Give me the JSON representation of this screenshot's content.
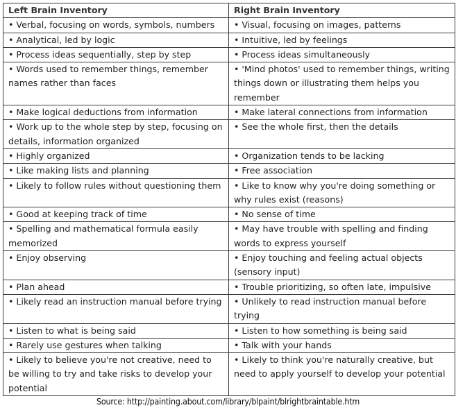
{
  "headers": {
    "left": "Left Brain Inventory",
    "right": "Right Brain Inventory"
  },
  "rows": [
    {
      "left": "• Verbal, focusing on words, symbols, numbers",
      "right": "• Visual, focusing on images, patterns"
    },
    {
      "left": "• Analytical, led by logic",
      "right": "• Intuitive, led by feelings"
    },
    {
      "left": "• Process ideas sequentially, step by step",
      "right": "• Process ideas simultaneously"
    },
    {
      "left": "• Words used to remember things, remember names rather than faces",
      "right": "• 'Mind photos' used to remember things, writing things down or illustrating them helps you remember"
    },
    {
      "left": "• Make logical deductions from information",
      "right": "• Make lateral connections from information"
    },
    {
      "left": "• Work up to the whole step by step, focusing on details, information organized",
      "right": "• See the whole first, then the details"
    },
    {
      "left": "• Highly organized",
      "right": "• Organization tends to be lacking"
    },
    {
      "left": "• Like making lists and planning",
      "right": "• Free association"
    },
    {
      "left": "• Likely to follow rules without questioning them",
      "right": "• Like to know why you're doing something or why rules exist (reasons)"
    },
    {
      "left": "• Good at keeping track of time",
      "right": "• No sense of time"
    },
    {
      "left": "• Spelling and mathematical formula easily memorized",
      "right": "• May have trouble with spelling and finding words to express yourself"
    },
    {
      "left": "• Enjoy observing",
      "right": "• Enjoy touching and feeling actual objects (sensory input)"
    },
    {
      "left": "• Plan ahead",
      "right": "• Trouble prioritizing, so often late, impulsive"
    },
    {
      "left": "• Likely read an instruction manual before trying",
      "right": "• Unlikely to read instruction manual before trying"
    },
    {
      "left": "• Listen to what is being said",
      "right": "• Listen to how something is being said"
    },
    {
      "left": "• Rarely use gestures when talking",
      "right": "• Talk with your hands"
    },
    {
      "left": "• Likely to believe you're not creative, need to be willing to try and take risks to develop your potential",
      "right": "• Likely to think you're naturally creative, but need to apply yourself to develop your potential"
    }
  ],
  "source": "Source: http://painting.about.com/library/blpaint/blrightbraintable.htm"
}
